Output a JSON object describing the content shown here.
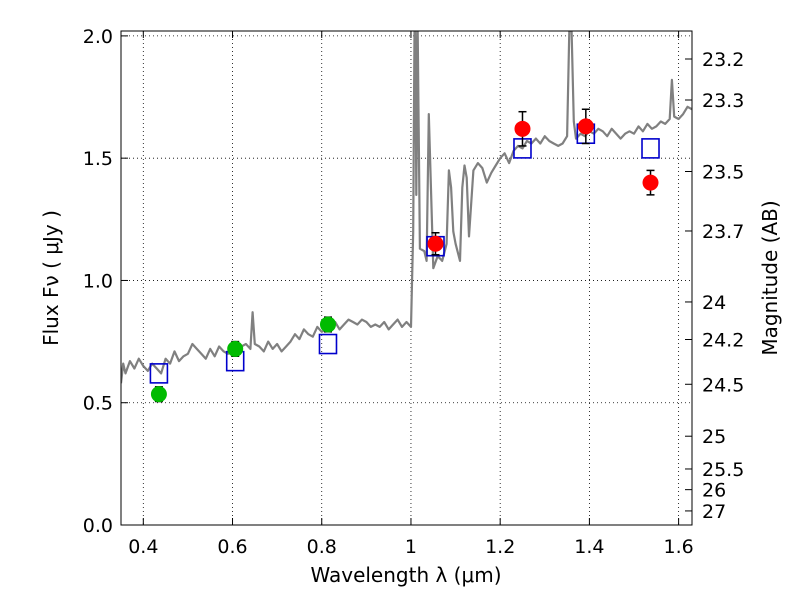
{
  "chart_data": {
    "type": "scatter",
    "xlabel": "Wavelength  λ (μm)",
    "ylabel": "Flux  Fν  ( μJy )",
    "y2label": "Magnitude (AB)",
    "xlim": [
      0.35,
      1.63
    ],
    "ylim": [
      0.0,
      2.02
    ],
    "grid": true,
    "x_ticks": [
      {
        "value": 0.4,
        "label": "0.4"
      },
      {
        "value": 0.6,
        "label": "0.6"
      },
      {
        "value": 0.8,
        "label": "0.8"
      },
      {
        "value": 1.0,
        "label": "1"
      },
      {
        "value": 1.2,
        "label": "1.2"
      },
      {
        "value": 1.4,
        "label": "1.4"
      },
      {
        "value": 1.6,
        "label": "1.6"
      }
    ],
    "y_ticks": [
      {
        "value": 0.0,
        "label": "0.0"
      },
      {
        "value": 0.5,
        "label": "0.5"
      },
      {
        "value": 1.0,
        "label": "1.0"
      },
      {
        "value": 1.5,
        "label": "1.5"
      },
      {
        "value": 2.0,
        "label": "2.0"
      }
    ],
    "y2_ticks": [
      {
        "value": 23.2,
        "label": "23.2"
      },
      {
        "value": 23.3,
        "label": "23.3"
      },
      {
        "value": 23.5,
        "label": "23.5"
      },
      {
        "value": 23.7,
        "label": "23.7"
      },
      {
        "value": 24,
        "label": "24"
      },
      {
        "value": 24.2,
        "label": "24.2"
      },
      {
        "value": 24.5,
        "label": "24.5"
      },
      {
        "value": 25,
        "label": "25"
      },
      {
        "value": 25.5,
        "label": "25.5"
      },
      {
        "value": 26,
        "label": "26"
      },
      {
        "value": 27,
        "label": "27"
      }
    ],
    "series": [
      {
        "kind": "model-spectrum",
        "color": "#808080",
        "x": [
          0.35,
          0.355,
          0.36,
          0.37,
          0.38,
          0.39,
          0.4,
          0.41,
          0.42,
          0.43,
          0.44,
          0.45,
          0.46,
          0.47,
          0.48,
          0.49,
          0.5,
          0.51,
          0.52,
          0.53,
          0.54,
          0.55,
          0.56,
          0.57,
          0.58,
          0.59,
          0.6,
          0.61,
          0.62,
          0.63,
          0.64,
          0.645,
          0.65,
          0.66,
          0.67,
          0.68,
          0.69,
          0.7,
          0.71,
          0.72,
          0.73,
          0.74,
          0.75,
          0.76,
          0.77,
          0.78,
          0.79,
          0.8,
          0.81,
          0.82,
          0.83,
          0.84,
          0.85,
          0.86,
          0.87,
          0.88,
          0.89,
          0.9,
          0.91,
          0.92,
          0.93,
          0.94,
          0.95,
          0.96,
          0.97,
          0.98,
          0.99,
          1.0,
          1.005,
          1.008,
          1.01,
          1.012,
          1.015,
          1.02,
          1.03,
          1.035,
          1.04,
          1.05,
          1.06,
          1.07,
          1.08,
          1.085,
          1.09,
          1.095,
          1.1,
          1.11,
          1.115,
          1.12,
          1.125,
          1.13,
          1.14,
          1.15,
          1.16,
          1.17,
          1.18,
          1.19,
          1.2,
          1.21,
          1.22,
          1.23,
          1.24,
          1.25,
          1.26,
          1.27,
          1.28,
          1.29,
          1.3,
          1.31,
          1.32,
          1.33,
          1.34,
          1.35,
          1.355,
          1.36,
          1.365,
          1.37,
          1.38,
          1.39,
          1.4,
          1.41,
          1.42,
          1.43,
          1.44,
          1.45,
          1.46,
          1.47,
          1.48,
          1.49,
          1.5,
          1.51,
          1.52,
          1.53,
          1.54,
          1.55,
          1.56,
          1.57,
          1.58,
          1.585,
          1.59,
          1.6,
          1.61,
          1.62,
          1.63
        ],
        "y": [
          0.58,
          0.66,
          0.62,
          0.67,
          0.64,
          0.68,
          0.65,
          0.63,
          0.66,
          0.64,
          0.62,
          0.68,
          0.66,
          0.71,
          0.67,
          0.69,
          0.7,
          0.74,
          0.72,
          0.7,
          0.68,
          0.72,
          0.69,
          0.73,
          0.71,
          0.7,
          0.72,
          0.71,
          0.73,
          0.74,
          0.72,
          0.87,
          0.74,
          0.73,
          0.71,
          0.75,
          0.72,
          0.74,
          0.71,
          0.73,
          0.75,
          0.78,
          0.76,
          0.8,
          0.78,
          0.77,
          0.81,
          0.79,
          0.8,
          0.81,
          0.83,
          0.8,
          0.82,
          0.84,
          0.83,
          0.82,
          0.84,
          0.83,
          0.81,
          0.82,
          0.81,
          0.83,
          0.8,
          0.82,
          0.84,
          0.81,
          0.83,
          0.81,
          1.2,
          2.02,
          2.02,
          1.35,
          2.02,
          1.13,
          1.12,
          1.08,
          1.68,
          1.05,
          1.1,
          1.08,
          1.15,
          1.45,
          1.38,
          1.2,
          1.15,
          1.08,
          1.38,
          1.47,
          1.42,
          1.18,
          1.45,
          1.48,
          1.46,
          1.4,
          1.44,
          1.47,
          1.5,
          1.52,
          1.48,
          1.53,
          1.55,
          1.54,
          1.57,
          1.56,
          1.58,
          1.56,
          1.59,
          1.57,
          1.56,
          1.55,
          1.56,
          1.59,
          2.02,
          2.02,
          1.65,
          1.58,
          1.6,
          1.59,
          1.61,
          1.6,
          1.62,
          1.61,
          1.59,
          1.62,
          1.6,
          1.58,
          1.6,
          1.61,
          1.6,
          1.63,
          1.61,
          1.64,
          1.62,
          1.63,
          1.65,
          1.64,
          1.66,
          1.82,
          1.67,
          1.66,
          1.68,
          1.71,
          1.7
        ]
      },
      {
        "kind": "model-photometry",
        "marker": "open-square",
        "color": "#0000cc",
        "x": [
          0.435,
          0.606,
          0.814,
          1.055,
          1.25,
          1.392,
          1.537
        ],
        "y": [
          0.62,
          0.67,
          0.74,
          1.14,
          1.54,
          1.6,
          1.54
        ]
      },
      {
        "kind": "observed-optical",
        "marker": "filled-circle",
        "color": "#00bb00",
        "x": [
          0.435,
          0.606,
          0.814
        ],
        "y": [
          0.535,
          0.72,
          0.82
        ],
        "yerr": [
          0.03,
          0.03,
          0.03
        ]
      },
      {
        "kind": "observed-infrared",
        "marker": "filled-circle",
        "color": "#ff0000",
        "x": [
          1.055,
          1.25,
          1.392,
          1.537
        ],
        "y": [
          1.15,
          1.62,
          1.63,
          1.4
        ],
        "yerr": [
          0.045,
          0.07,
          0.07,
          0.05
        ]
      }
    ]
  }
}
